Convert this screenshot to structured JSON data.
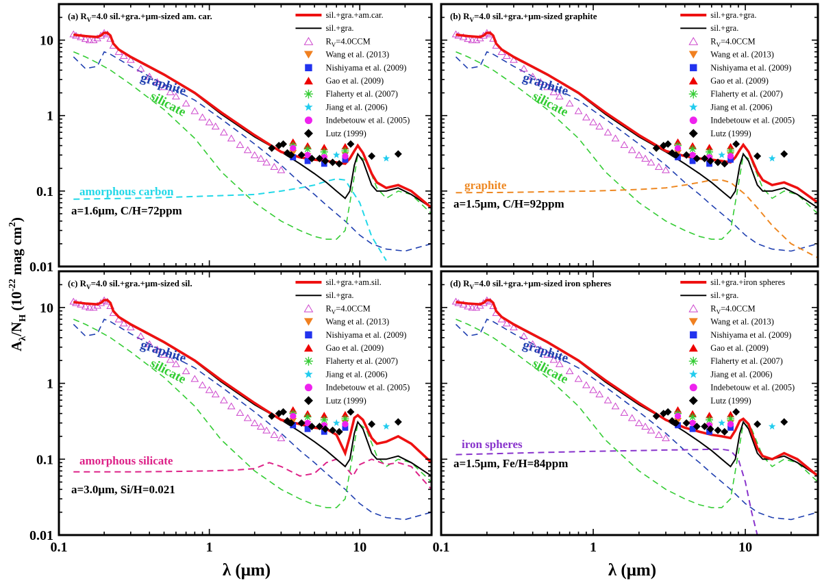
{
  "chart_data": {
    "type": "line",
    "scale": {
      "x": "log",
      "y": "log"
    },
    "xlim": [
      0.1,
      30
    ],
    "ylim": [
      0.01,
      30
    ],
    "x_ticks": [
      "0.1",
      "1",
      "10"
    ],
    "y_ticks": [
      "0.01",
      "0.1",
      "1",
      "10"
    ],
    "xlabel_main": "λ (μm)",
    "ylabel": {
      "a": "A",
      "sub1": "λ",
      "b": "/N",
      "sub2": "H",
      "c": " (10",
      "sup1": "-22",
      "d": " mag cm",
      "sup2": "2",
      "e": ")"
    },
    "common_legend": {
      "black_line": "sil.+gra.",
      "ccm": {
        "a": "R",
        "sub": "V",
        "b": "=4.0CCM"
      },
      "obs": [
        {
          "name": "Wang et al. (2013)",
          "marker": "triangle-down",
          "color": "#f08020"
        },
        {
          "name": "Nishiyama et al. (2009)",
          "marker": "square",
          "color": "#2233ee"
        },
        {
          "name": "Gao et al. (2009)",
          "marker": "triangle-up",
          "color": "#ee0000"
        },
        {
          "name": "Flaherty et al. (2007)",
          "marker": "asterisk",
          "color": "#33cc33"
        },
        {
          "name": "Jiang et al. (2006)",
          "marker": "star",
          "color": "#22ccee"
        },
        {
          "name": "Indebetouw et al. (2005)",
          "marker": "circle",
          "color": "#ee22ee"
        },
        {
          "name": "Lutz (1999)",
          "marker": "diamond",
          "color": "#000000"
        }
      ]
    },
    "colors": {
      "red": "#ee1111",
      "black": "#000000",
      "graphite": "#1f3fb0",
      "silicate": "#33cc33",
      "ccm": "#cc44cc"
    },
    "base_curves": {
      "silicate": {
        "x": [
          0.125,
          0.15,
          0.18,
          0.22,
          0.3,
          0.5,
          0.8,
          1.2,
          2,
          3,
          4,
          5,
          6,
          7,
          8,
          9,
          9.7,
          11,
          13,
          15,
          18,
          22,
          30
        ],
        "y": [
          7,
          6,
          5,
          4,
          2.6,
          1.2,
          0.5,
          0.18,
          0.07,
          0.04,
          0.03,
          0.025,
          0.023,
          0.023,
          0.03,
          0.12,
          0.3,
          0.25,
          0.11,
          0.08,
          0.1,
          0.09,
          0.05
        ]
      },
      "graphite": {
        "x": [
          0.125,
          0.15,
          0.18,
          0.2,
          0.22,
          0.3,
          0.5,
          0.8,
          1.2,
          2,
          3,
          4,
          5,
          6,
          8,
          10,
          12,
          15,
          20,
          30
        ],
        "y": [
          6,
          4.2,
          4.5,
          7,
          6.5,
          4.5,
          2.6,
          1.6,
          0.9,
          0.42,
          0.22,
          0.13,
          0.09,
          0.065,
          0.04,
          0.026,
          0.02,
          0.017,
          0.016,
          0.02
        ]
      },
      "sil_gra": {
        "x": [
          3,
          4,
          5,
          6,
          7,
          8,
          8.6,
          9.2,
          9.7,
          10.5,
          12,
          13,
          15,
          18,
          22,
          30
        ],
        "y": [
          0.33,
          0.23,
          0.17,
          0.13,
          0.1,
          0.08,
          0.1,
          0.22,
          0.31,
          0.25,
          0.12,
          0.1,
          0.1,
          0.11,
          0.09,
          0.06
        ]
      }
    },
    "ccm": {
      "x": [
        0.125,
        0.13,
        0.14,
        0.15,
        0.16,
        0.17,
        0.18,
        0.19,
        0.2,
        0.21,
        0.22,
        0.23,
        0.25,
        0.27,
        0.3,
        0.35,
        0.4,
        0.45,
        0.5,
        0.55,
        0.6,
        0.7,
        0.8,
        0.9,
        1.0,
        1.1,
        1.25,
        1.4,
        1.6,
        1.8,
        2.0,
        2.2,
        2.4,
        2.7,
        3.0
      ],
      "y": [
        12,
        11.5,
        11,
        10.4,
        10,
        10,
        10.6,
        11.5,
        12.5,
        12,
        10.5,
        8.5,
        7,
        6.2,
        5.5,
        4.2,
        3.3,
        2.8,
        2.4,
        2.05,
        1.8,
        1.45,
        1.15,
        0.95,
        0.82,
        0.72,
        0.6,
        0.5,
        0.41,
        0.35,
        0.3,
        0.27,
        0.24,
        0.21,
        0.19
      ]
    },
    "observations": {
      "Wang et al. (2013)": {
        "x": [
          3.6,
          4.5,
          5.8,
          8.0
        ],
        "y": [
          0.32,
          0.29,
          0.27,
          0.3
        ]
      },
      "Nishiyama et al. (2009)": {
        "x": [
          3.6,
          4.5,
          5.8,
          8.0
        ],
        "y": [
          0.28,
          0.25,
          0.23,
          0.26
        ]
      },
      "Gao et al. (2009)": {
        "x": [
          3.6,
          4.5,
          5.8,
          8.0
        ],
        "y": [
          0.45,
          0.4,
          0.38,
          0.39
        ]
      },
      "Flaherty et al. (2007)": {
        "x": [
          3.6,
          4.5,
          5.8,
          8.0
        ],
        "y": [
          0.4,
          0.36,
          0.33,
          0.34
        ]
      },
      "Jiang et al. (2006)": {
        "x": [
          7.0,
          15.0
        ],
        "y": [
          0.3,
          0.27
        ]
      },
      "Indebetouw et al. (2005)": {
        "x": [
          3.6,
          4.5,
          5.8,
          8.0
        ],
        "y": [
          0.37,
          0.3,
          0.28,
          0.29
        ]
      },
      "Lutz (1999)": {
        "x": [
          2.6,
          2.9,
          3.1,
          3.3,
          3.5,
          4.1,
          4.8,
          5.4,
          5.9,
          6.6,
          7.3,
          8.7,
          12.0,
          18.0
        ],
        "y": [
          0.37,
          0.4,
          0.42,
          0.32,
          0.3,
          0.3,
          0.27,
          0.27,
          0.25,
          0.24,
          0.23,
          0.42,
          0.29,
          0.31
        ]
      }
    },
    "panels": [
      {
        "id": "a",
        "title": {
          "a": "(a) R",
          "sub": "V",
          "b": "=4.0  sil.+gra.+μm-sized am. car."
        },
        "red_label": "sil.+gra.+am.car.",
        "component_label": "amorphous carbon",
        "component_color": "#22d8e8",
        "annotation": "a=1.6μm, C/H=72ppm",
        "component": {
          "x": [
            0.125,
            0.3,
            0.5,
            1,
            2,
            3,
            4,
            5,
            6,
            7,
            8,
            10,
            12,
            15
          ],
          "y": [
            0.078,
            0.08,
            0.082,
            0.086,
            0.09,
            0.1,
            0.11,
            0.12,
            0.135,
            0.145,
            0.14,
            0.07,
            0.025,
            0.012
          ]
        },
        "red": {
          "x": [
            0.125,
            0.15,
            0.18,
            0.19,
            0.2,
            0.21,
            0.22,
            0.23,
            0.25,
            0.3,
            0.5,
            0.8,
            1.2,
            2,
            3,
            4,
            5,
            6,
            7,
            8,
            8.6,
            9.2,
            9.7,
            10.5,
            12,
            13,
            15,
            18,
            22,
            30
          ],
          "y": [
            11.8,
            11.3,
            11,
            11.5,
            12.5,
            12.5,
            11.5,
            9,
            7.5,
            6,
            3.5,
            2.0,
            1.1,
            0.55,
            0.33,
            0.28,
            0.26,
            0.25,
            0.24,
            0.23,
            0.27,
            0.34,
            0.4,
            0.32,
            0.17,
            0.13,
            0.11,
            0.12,
            0.1,
            0.06
          ]
        },
        "label_pos": {
          "graphite": "graphite",
          "silicate": "silicate"
        }
      },
      {
        "id": "b",
        "title": {
          "a": "(b) R",
          "sub": "V",
          "b": "=4.0  sil.+gra.+μm-sized graphite"
        },
        "red_label": "sil.+gra.+gra.",
        "component_label": "graphite",
        "component_color": "#ee8822",
        "annotation": "a=1.5μm, C/H=92ppm",
        "component": {
          "x": [
            0.125,
            0.3,
            0.5,
            1,
            2,
            3,
            4,
            5,
            6,
            7,
            8,
            10,
            12,
            15,
            20,
            30
          ],
          "y": [
            0.095,
            0.096,
            0.098,
            0.1,
            0.105,
            0.11,
            0.12,
            0.13,
            0.14,
            0.14,
            0.13,
            0.09,
            0.06,
            0.035,
            0.02,
            0.013
          ]
        },
        "red": {
          "x": [
            0.125,
            0.15,
            0.18,
            0.19,
            0.2,
            0.21,
            0.22,
            0.23,
            0.25,
            0.3,
            0.5,
            0.8,
            1.2,
            2,
            3,
            4,
            5,
            6,
            7,
            8,
            8.6,
            9.2,
            9.7,
            10.5,
            12,
            13,
            15,
            18,
            22,
            30
          ],
          "y": [
            11.8,
            11.3,
            11,
            11.5,
            12.5,
            12.5,
            11.5,
            9,
            7.5,
            6,
            3.5,
            2.0,
            1.1,
            0.55,
            0.34,
            0.29,
            0.27,
            0.26,
            0.25,
            0.24,
            0.28,
            0.35,
            0.41,
            0.33,
            0.18,
            0.14,
            0.12,
            0.13,
            0.11,
            0.07
          ]
        },
        "label_pos": {
          "graphite": "graphite",
          "silicate": "silicate"
        }
      },
      {
        "id": "c",
        "title": {
          "a": "(c) R",
          "sub": "V",
          "b": "=4.0  sil.+gra.+μm-sized sil."
        },
        "red_label": "sil.+gra.+am.sil.",
        "component_label": "amorphous silicate",
        "component_color": "#dd2288",
        "annotation": "a=3.0μm, Si/H=0.021",
        "component": {
          "x": [
            0.125,
            0.3,
            0.6,
            1,
            1.5,
            2,
            2.5,
            3,
            4,
            5,
            6,
            7,
            8,
            9,
            10,
            12,
            15,
            18,
            22,
            30
          ],
          "y": [
            0.068,
            0.068,
            0.069,
            0.07,
            0.072,
            0.075,
            0.09,
            0.08,
            0.06,
            0.065,
            0.09,
            0.1,
            0.08,
            0.06,
            0.085,
            0.1,
            0.085,
            0.09,
            0.08,
            0.04
          ]
        },
        "red": {
          "x": [
            0.125,
            0.15,
            0.18,
            0.19,
            0.2,
            0.21,
            0.22,
            0.23,
            0.25,
            0.3,
            0.5,
            0.8,
            1.2,
            2,
            3,
            4,
            5,
            6,
            7,
            8,
            8.6,
            9.2,
            9.7,
            10.5,
            12,
            13,
            15,
            18,
            22,
            30
          ],
          "y": [
            11.8,
            11.3,
            11,
            11.5,
            12.5,
            12.5,
            11.5,
            9,
            7.5,
            6,
            3.5,
            2.0,
            1.1,
            0.55,
            0.33,
            0.29,
            0.26,
            0.25,
            0.21,
            0.12,
            0.2,
            0.35,
            0.38,
            0.33,
            0.19,
            0.16,
            0.17,
            0.2,
            0.16,
            0.09
          ]
        },
        "label_pos": {
          "graphite": "graphite",
          "silicate": "silicate"
        }
      },
      {
        "id": "d",
        "title": {
          "a": "(d) R",
          "sub": "V",
          "b": "=4.0  sil.+gra.+μm-sized iron spheres"
        },
        "red_label": "sil.+gra.+iron spheres",
        "component_label": "iron spheres",
        "component_color": "#8833cc",
        "annotation": "a=1.5μm, Fe/H=84ppm",
        "component": {
          "x": [
            0.125,
            0.3,
            0.5,
            1,
            2,
            3,
            4,
            5,
            6,
            7,
            8,
            9,
            10,
            11,
            12
          ],
          "y": [
            0.115,
            0.12,
            0.123,
            0.127,
            0.13,
            0.132,
            0.133,
            0.134,
            0.135,
            0.135,
            0.13,
            0.1,
            0.05,
            0.02,
            0.01
          ]
        },
        "red": {
          "x": [
            0.125,
            0.15,
            0.18,
            0.19,
            0.2,
            0.21,
            0.22,
            0.23,
            0.25,
            0.3,
            0.5,
            0.8,
            1.2,
            2,
            3,
            4,
            5,
            6,
            7,
            8,
            8.6,
            9.2,
            9.7,
            10.5,
            12,
            13,
            15,
            18,
            22,
            30
          ],
          "y": [
            11.8,
            11.3,
            11,
            11.5,
            12.5,
            12.5,
            11.5,
            9,
            7.5,
            6,
            3.5,
            2.0,
            1.1,
            0.55,
            0.33,
            0.26,
            0.23,
            0.21,
            0.2,
            0.19,
            0.24,
            0.32,
            0.34,
            0.29,
            0.14,
            0.11,
            0.1,
            0.12,
            0.1,
            0.06
          ]
        },
        "label_pos": {
          "graphite": "graphite",
          "silicate": "silicate"
        }
      }
    ],
    "curve_labels": {
      "graphite": "graphite",
      "silicate": "silicate"
    }
  }
}
